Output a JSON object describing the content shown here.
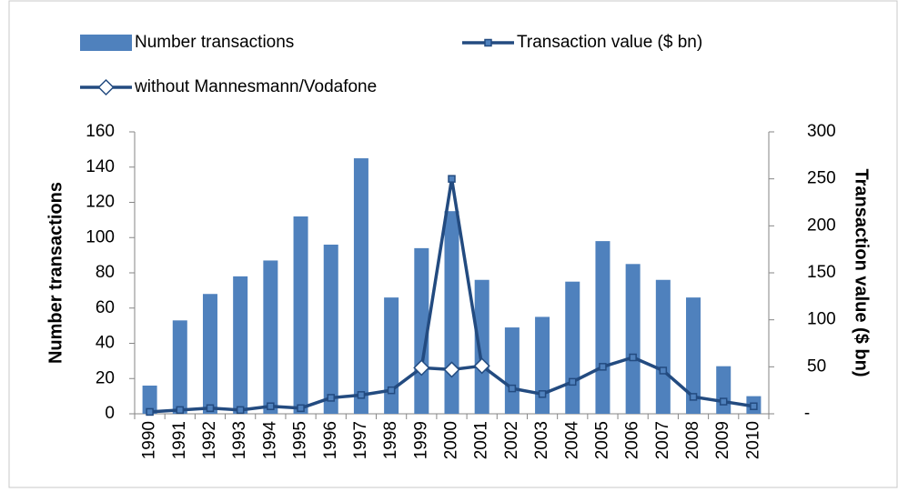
{
  "chart_data": {
    "type": "bar_line",
    "categories": [
      "1990",
      "1991",
      "1992",
      "1993",
      "1994",
      "1995",
      "1996",
      "1997",
      "1998",
      "1999",
      "2000",
      "2001",
      "2002",
      "2003",
      "2004",
      "2005",
      "2006",
      "2007",
      "2008",
      "2009",
      "2010"
    ],
    "y_label": "Number transactions",
    "y2_label": "Transaction value ($ bn)",
    "ylim": [
      0,
      160
    ],
    "yticks": [
      0,
      20,
      40,
      60,
      80,
      100,
      120,
      140,
      160
    ],
    "y2lim": [
      0,
      300
    ],
    "y2ticks": [
      {
        "value": 0,
        "label": "-"
      },
      50,
      100,
      150,
      200,
      250,
      300
    ],
    "series": [
      {
        "name": "Number transactions",
        "type": "bar",
        "color": "#4f81bd",
        "values": [
          16,
          53,
          68,
          78,
          87,
          112,
          96,
          145,
          66,
          94,
          115,
          76,
          49,
          55,
          75,
          98,
          85,
          76,
          66,
          27,
          10
        ]
      },
      {
        "name": "Transaction value ($ bn)",
        "type": "line",
        "axis": "y2",
        "color": "#234b80",
        "marker": "square",
        "values": [
          2,
          4,
          6,
          4,
          8,
          6,
          17,
          20,
          25,
          49,
          250,
          51,
          27,
          21,
          34,
          50,
          60,
          46,
          18,
          13,
          8
        ]
      },
      {
        "name": "without Mannesmann/Vodafone",
        "type": "line",
        "axis": "y2",
        "color": "#234b80",
        "marker": "diamond",
        "values": [
          null,
          null,
          null,
          null,
          null,
          null,
          null,
          null,
          null,
          49,
          47,
          51,
          null,
          null,
          null,
          null,
          null,
          null,
          null,
          null,
          null
        ]
      }
    ]
  }
}
